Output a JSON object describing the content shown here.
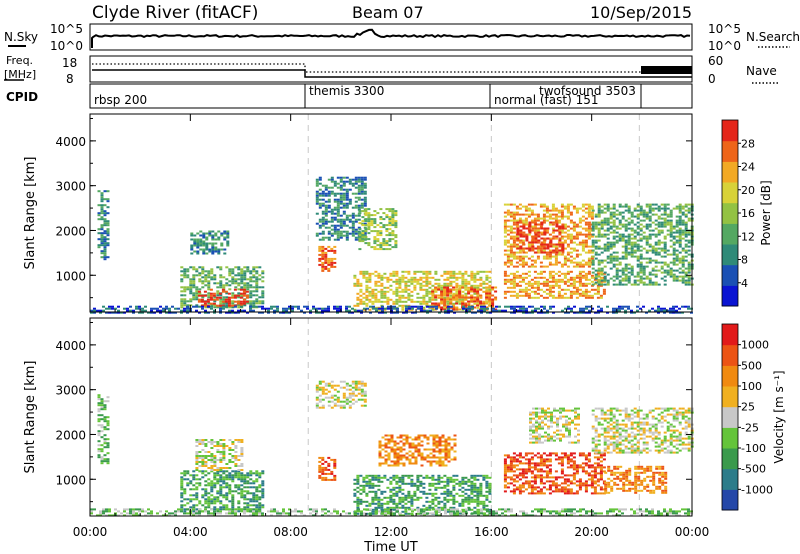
{
  "header": {
    "station": "Clyde River (fitACF)",
    "beam": "Beam 07",
    "date": "10/Sep/2015"
  },
  "noise_panel": {
    "left_label": "N.Sky",
    "right_label": "N.Search",
    "left_ticks": [
      "10^5",
      "10^0"
    ],
    "right_ticks": [
      "10^5",
      "10^0"
    ]
  },
  "freq_panel": {
    "left_label_line1": "Freq.",
    "left_label_line2": "[MHz]",
    "right_label": "Nave",
    "left_ticks": [
      "18",
      "8"
    ],
    "right_ticks": [
      "60",
      "0"
    ]
  },
  "cpid_panel": {
    "label": "CPID",
    "programs": [
      {
        "name": "rbsp 200",
        "start_hour": 0
      },
      {
        "name": "themis 3300",
        "start_hour": 8.7
      },
      {
        "name": "normal (fast) 151",
        "start_hour": 16
      },
      {
        "name": "twofsound 3503",
        "start_hour": 18.5
      }
    ],
    "boundary_hours": [
      8.7,
      16,
      21.9
    ]
  },
  "chart_data": [
    {
      "type": "heatmap",
      "title": "Power",
      "ylabel": "Slant Range [km]",
      "xlabel": "Time UT",
      "x_ticks": [
        "00:00",
        "04:00",
        "08:00",
        "12:00",
        "16:00",
        "20:00",
        "00:00"
      ],
      "y_ticks": [
        "1000",
        "2000",
        "3000",
        "4000"
      ],
      "xlim_hours": [
        0,
        24
      ],
      "ylim_km": [
        180,
        4600
      ],
      "colorbar_label": "Power [dB]",
      "colorbar_ticks": [
        "28",
        "24",
        "20",
        "16",
        "12",
        "8",
        "4"
      ],
      "colorbar_colors": [
        "#0a14d2",
        "#1a50b4",
        "#2f8a78",
        "#54a862",
        "#93c243",
        "#d8d238",
        "#f2a924",
        "#ee6519",
        "#e4261a"
      ],
      "regions": [
        {
          "t0": 0.3,
          "t1": 0.7,
          "r0": 1300,
          "r1": 2900,
          "level": 2
        },
        {
          "t0": 3.6,
          "t1": 6.9,
          "r0": 300,
          "r1": 1200,
          "level": 3
        },
        {
          "t0": 4.3,
          "t1": 6.3,
          "r0": 300,
          "r1": 700,
          "level": 8
        },
        {
          "t0": 4.0,
          "t1": 5.5,
          "r0": 1500,
          "r1": 2000,
          "level": 2
        },
        {
          "t0": 9.1,
          "t1": 9.7,
          "r0": 1100,
          "r1": 1700,
          "level": 7
        },
        {
          "t0": 9.0,
          "t1": 11.0,
          "r0": 1800,
          "r1": 3200,
          "level": 2
        },
        {
          "t0": 10.7,
          "t1": 12.2,
          "r0": 1600,
          "r1": 2500,
          "level": 4
        },
        {
          "t0": 10.5,
          "t1": 16.0,
          "r0": 250,
          "r1": 1100,
          "level": 5
        },
        {
          "t0": 13.6,
          "t1": 16.2,
          "r0": 250,
          "r1": 750,
          "level": 7
        },
        {
          "t0": 16.5,
          "t1": 20.0,
          "r0": 1200,
          "r1": 2600,
          "level": 6
        },
        {
          "t0": 17.0,
          "t1": 18.8,
          "r0": 1500,
          "r1": 2200,
          "level": 8
        },
        {
          "t0": 16.5,
          "t1": 20.5,
          "r0": 500,
          "r1": 1100,
          "level": 6
        },
        {
          "t0": 20.0,
          "t1": 24.0,
          "r0": 800,
          "r1": 2600,
          "level": 3
        },
        {
          "t0": 0.0,
          "t1": 24.0,
          "r0": 180,
          "r1": 320,
          "level": 1
        }
      ]
    },
    {
      "type": "heatmap",
      "title": "Velocity",
      "ylabel": "Slant Range [km]",
      "xlabel": "Time UT",
      "x_ticks": [
        "00:00",
        "04:00",
        "08:00",
        "12:00",
        "16:00",
        "20:00",
        "00:00"
      ],
      "y_ticks": [
        "1000",
        "2000",
        "3000",
        "4000"
      ],
      "xlim_hours": [
        0,
        24
      ],
      "ylim_km": [
        180,
        4600
      ],
      "colorbar_label": "Velocity [m s⁻¹]",
      "colorbar_ticks": [
        "1000",
        "500",
        "100",
        "25",
        "-25",
        "-100",
        "-500",
        "-1000"
      ],
      "colorbar_colors": [
        "#2447a8",
        "#2c7c8a",
        "#3a9a4c",
        "#64c43a",
        "#c8c8c8",
        "#f0b020",
        "#f08a10",
        "#ec5414",
        "#e21a1a"
      ],
      "regions": [
        {
          "t0": 0.3,
          "t1": 0.7,
          "r0": 1300,
          "r1": 2900,
          "level": 3
        },
        {
          "t0": 3.6,
          "t1": 6.9,
          "r0": 300,
          "r1": 1200,
          "level": 2
        },
        {
          "t0": 4.2,
          "t1": 6.0,
          "r0": 1200,
          "r1": 1900,
          "level": 4
        },
        {
          "t0": 9.1,
          "t1": 9.7,
          "r0": 1000,
          "r1": 1500,
          "level": 7
        },
        {
          "t0": 9.0,
          "t1": 11.0,
          "r0": 2600,
          "r1": 3200,
          "level": 4
        },
        {
          "t0": 10.5,
          "t1": 16.0,
          "r0": 250,
          "r1": 1100,
          "level": 2
        },
        {
          "t0": 11.5,
          "t1": 14.5,
          "r0": 1300,
          "r1": 2000,
          "level": 6
        },
        {
          "t0": 16.5,
          "t1": 20.5,
          "r0": 700,
          "r1": 1600,
          "level": 7
        },
        {
          "t0": 17.5,
          "t1": 19.5,
          "r0": 1800,
          "r1": 2600,
          "level": 4
        },
        {
          "t0": 20.0,
          "t1": 24.0,
          "r0": 1600,
          "r1": 2600,
          "level": 4
        },
        {
          "t0": 20.5,
          "t1": 23.0,
          "r0": 700,
          "r1": 1300,
          "level": 6
        },
        {
          "t0": 0.0,
          "t1": 24.0,
          "r0": 180,
          "r1": 350,
          "level": 3
        }
      ]
    }
  ]
}
